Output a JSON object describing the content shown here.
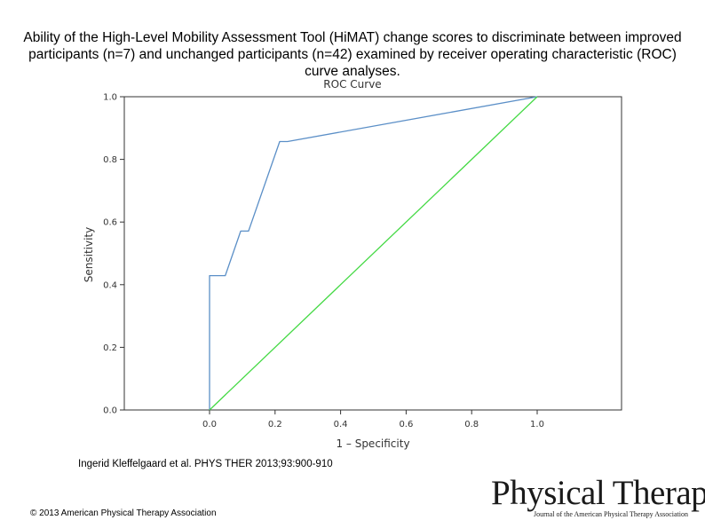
{
  "slide": {
    "title": "Ability of the High-Level Mobility Assessment Tool (HiMAT) change scores to discriminate between improved participants (n=7) and unchanged participants (n=42) examined by receiver operating characteristic (ROC) curve analyses.",
    "citation": "Ingerid Kleffelgaard et al. PHYS THER 2013;93:900-910",
    "copyright": "© 2013 American Physical Therapy Association",
    "logo": {
      "main": "Physical Therapy",
      "sub": "Journal of the American Physical Therapy Association"
    }
  },
  "colors": {
    "roc_line": "#5b8fc7",
    "reference_line": "#44d944",
    "axis": "#333333"
  },
  "chart_data": {
    "type": "line",
    "title": "ROC Curve",
    "xlabel": "1 – Specificity",
    "ylabel": "Sensitivity",
    "xlim": [
      0.0,
      1.0
    ],
    "ylim": [
      0.0,
      1.0
    ],
    "xticks": [
      "0.0",
      "0.2",
      "0.4",
      "0.6",
      "0.8",
      "1.0"
    ],
    "yticks": [
      "0.0",
      "0.2",
      "0.4",
      "0.6",
      "0.8",
      "1.0"
    ],
    "grid": false,
    "series": [
      {
        "role": "roc",
        "x": [
          0.0,
          0.0,
          0.048,
          0.095,
          0.119,
          0.214,
          0.238,
          1.0
        ],
        "y": [
          0.0,
          0.429,
          0.429,
          0.571,
          0.571,
          0.857,
          0.857,
          1.0
        ]
      },
      {
        "role": "reference",
        "x": [
          0.0,
          1.0
        ],
        "y": [
          0.0,
          1.0
        ]
      }
    ]
  }
}
